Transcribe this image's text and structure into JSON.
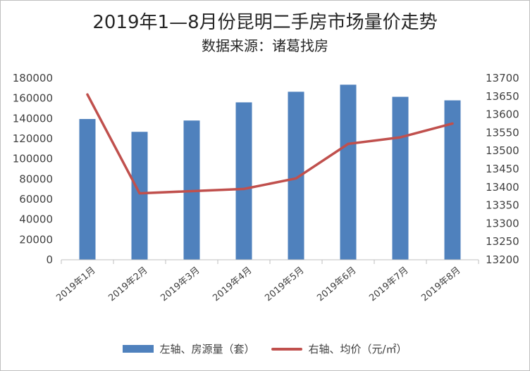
{
  "title": "2019年1—8月份昆明二手房市场量价走势",
  "subtitle": "数据来源：诸葛找房",
  "colors": {
    "bar": "#4f81bd",
    "line": "#c0504d",
    "axis": "#bfbfbf"
  },
  "legend": {
    "bar_label": "左轴、房源量（套）",
    "line_label": "右轴、均价（元/㎡）"
  },
  "chart_data": {
    "type": "bar+line",
    "title": "2019年1—8月份昆明二手房市场量价走势",
    "subtitle": "数据来源：诸葛找房",
    "categories": [
      "2019年1月",
      "2019年2月",
      "2019年3月",
      "2019年4月",
      "2019年5月",
      "2019年6月",
      "2019年7月",
      "2019年8月"
    ],
    "series": [
      {
        "name": "左轴、房源量（套）",
        "type": "bar",
        "axis": "left",
        "values": [
          139500,
          126800,
          138000,
          156000,
          166500,
          173500,
          161500,
          158000
        ]
      },
      {
        "name": "右轴、均价（元/㎡）",
        "type": "line",
        "axis": "right",
        "values": [
          13655,
          13383,
          13389,
          13395,
          13424,
          13519,
          13537,
          13575
        ]
      }
    ],
    "ylim_left": [
      0,
      180000
    ],
    "yticks_left": [
      "0",
      "20000",
      "40000",
      "60000",
      "80000",
      "100000",
      "120000",
      "140000",
      "160000",
      "180000"
    ],
    "ylim_right": [
      13200,
      13700
    ],
    "yticks_right": [
      "13200",
      "13250",
      "13300",
      "13350",
      "13400",
      "13450",
      "13500",
      "13550",
      "13600",
      "13650",
      "13700"
    ],
    "grid": false,
    "legend_position": "bottom"
  }
}
